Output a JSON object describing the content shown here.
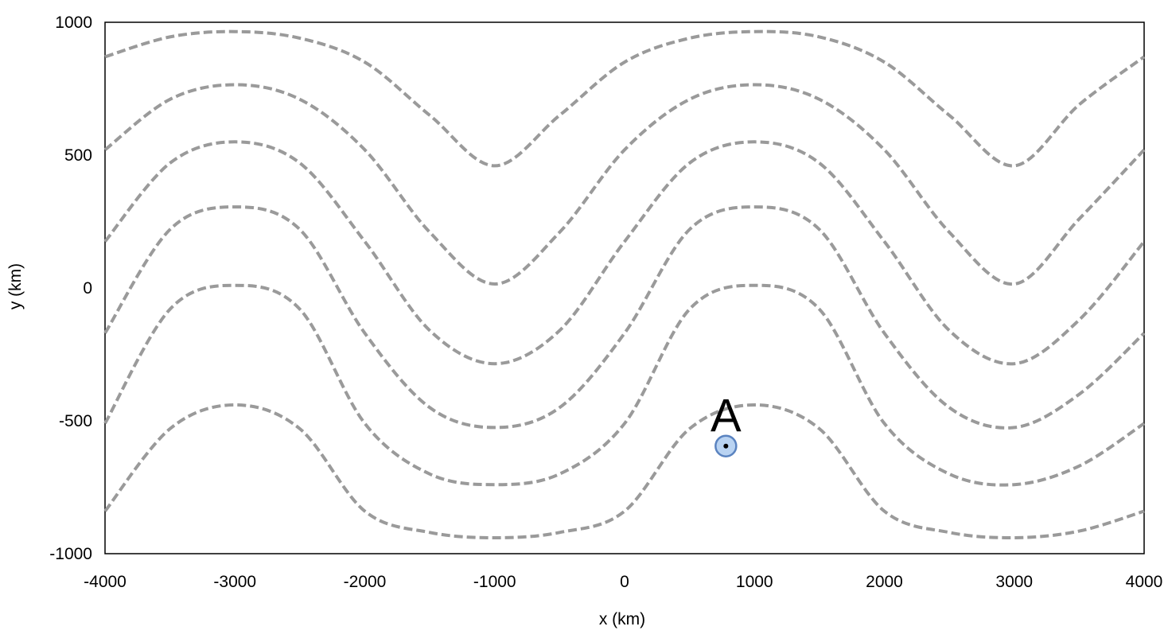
{
  "chart_data": {
    "type": "line",
    "title": "",
    "xlabel": "x (km)",
    "ylabel": "y (km)",
    "xlim": [
      -4000,
      4000
    ],
    "ylim": [
      -1000,
      1000
    ],
    "xticks": [
      "-4000",
      "-3000",
      "-2000",
      "-1000",
      "0",
      "1000",
      "2000",
      "3000",
      "4000"
    ],
    "yticks": [
      "1000",
      "500",
      "0",
      "-500",
      "-1000"
    ],
    "grid": false,
    "legend": "none",
    "line_style": "dashed",
    "line_color": "#9a9a9a",
    "x": [
      -4000,
      -3500,
      -3000,
      -2500,
      -2000,
      -1500,
      -1000,
      -500,
      0,
      500,
      1000,
      1500,
      2000,
      2500,
      3000,
      3500,
      4000
    ],
    "series": [
      {
        "values": [
          870,
          945,
          965,
          940,
          850,
          650,
          460,
          650,
          850,
          940,
          965,
          945,
          850,
          650,
          460,
          690,
          870
        ]
      },
      {
        "values": [
          520,
          710,
          765,
          710,
          520,
          210,
          15,
          210,
          520,
          710,
          765,
          710,
          520,
          210,
          15,
          260,
          520
        ]
      },
      {
        "values": [
          175,
          470,
          550,
          470,
          175,
          -160,
          -285,
          -160,
          175,
          470,
          550,
          470,
          175,
          -160,
          -285,
          -120,
          175
        ]
      },
      {
        "values": [
          -170,
          220,
          305,
          220,
          -170,
          -450,
          -525,
          -450,
          -170,
          220,
          305,
          220,
          -170,
          -450,
          -525,
          -400,
          -170
        ]
      },
      {
        "values": [
          -510,
          -80,
          10,
          -80,
          -510,
          -700,
          -740,
          -700,
          -510,
          -80,
          10,
          -80,
          -510,
          -700,
          -740,
          -670,
          -510
        ]
      },
      {
        "values": [
          -840,
          -530,
          -440,
          -530,
          -840,
          -920,
          -940,
          -920,
          -840,
          -530,
          -440,
          -530,
          -840,
          -920,
          -940,
          -915,
          -840
        ]
      }
    ],
    "annotations": [
      {
        "label": "A",
        "x": 780,
        "y": -595
      }
    ],
    "colors": {
      "marker_fill": "#b9d3f2",
      "marker_stroke": "#5a83c0",
      "marker_dot": "#000000"
    }
  }
}
